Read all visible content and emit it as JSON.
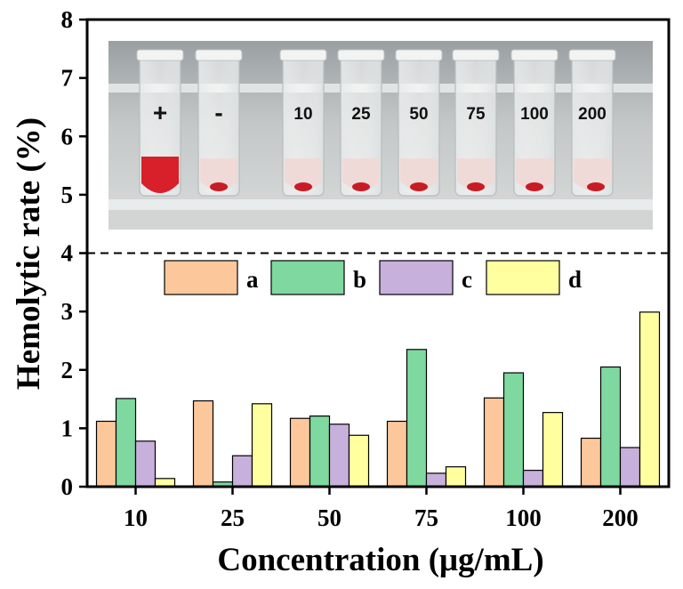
{
  "chart_data": {
    "type": "bar",
    "ylabel": "Hemolytic rate (%)",
    "xlabel": "Concentration (μg/mL)",
    "categories": [
      "10",
      "25",
      "50",
      "75",
      "100",
      "200"
    ],
    "ylim": [
      0,
      8
    ],
    "yticks": [
      "0",
      "1",
      "2",
      "3",
      "4",
      "5",
      "6",
      "7",
      "8"
    ],
    "threshold_line": {
      "y": 4,
      "style": "dashed"
    },
    "legend_position": "center",
    "grid": false,
    "series": [
      {
        "name": "a",
        "color": "#FCC89B",
        "values": [
          1.12,
          1.47,
          1.17,
          1.12,
          1.52,
          0.83
        ]
      },
      {
        "name": "b",
        "color": "#7ED8A0",
        "values": [
          1.51,
          0.08,
          1.21,
          2.35,
          1.95,
          2.05
        ]
      },
      {
        "name": "c",
        "color": "#C8B0DD",
        "values": [
          0.78,
          0.53,
          1.07,
          0.23,
          0.28,
          0.67
        ]
      },
      {
        "name": "d",
        "color": "#FFFFA0",
        "values": [
          0.14,
          1.42,
          0.88,
          0.34,
          1.27,
          2.99
        ]
      }
    ],
    "inset_photo": {
      "labels": [
        "+",
        "-",
        "10",
        "25",
        "50",
        "75",
        "100",
        "200"
      ]
    }
  }
}
